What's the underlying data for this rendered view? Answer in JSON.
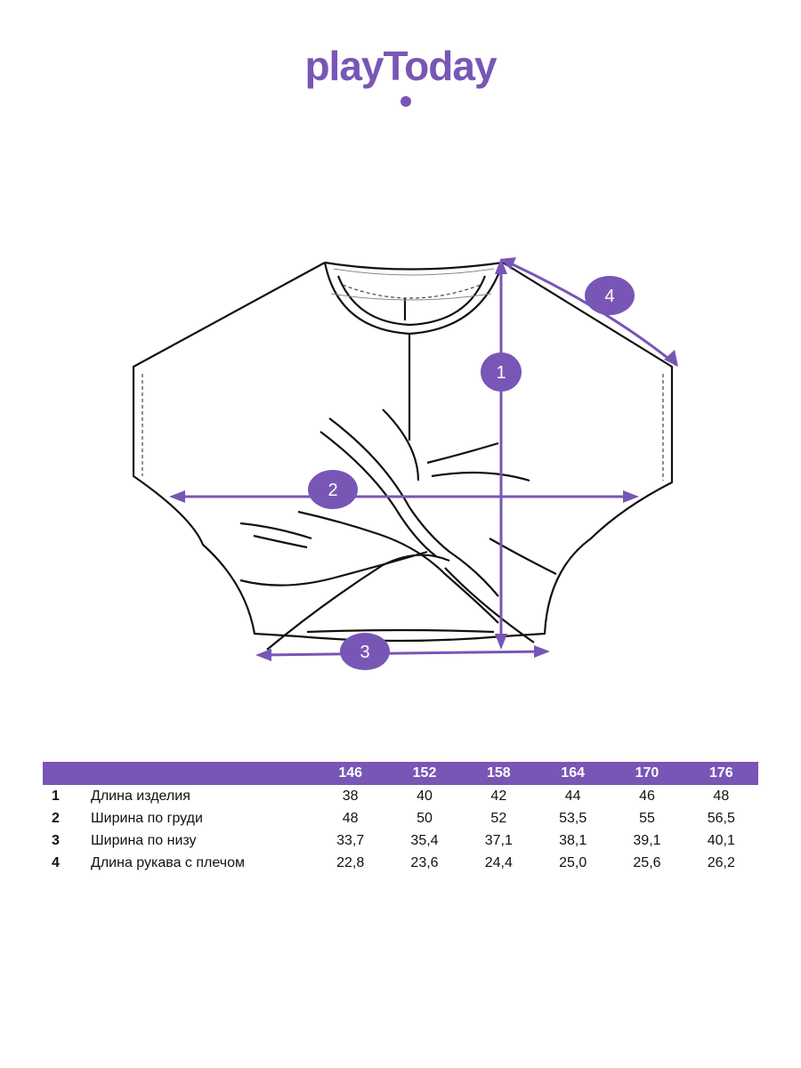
{
  "brand": {
    "name": "playToday",
    "color": "#7856b5"
  },
  "diagram": {
    "markers": [
      "1",
      "2",
      "3",
      "4"
    ],
    "accent": "#7856b5"
  },
  "table": {
    "sizes": [
      "146",
      "152",
      "158",
      "164",
      "170",
      "176"
    ],
    "rows": [
      {
        "num": "1",
        "name": "Длина изделия",
        "values": [
          "38",
          "40",
          "42",
          "44",
          "46",
          "48"
        ]
      },
      {
        "num": "2",
        "name": "Ширина по груди",
        "values": [
          "48",
          "50",
          "52",
          "53,5",
          "55",
          "56,5"
        ]
      },
      {
        "num": "3",
        "name": "Ширина по низу",
        "values": [
          "33,7",
          "35,4",
          "37,1",
          "38,1",
          "39,1",
          "40,1"
        ]
      },
      {
        "num": "4",
        "name": "Длина рукава с плечом",
        "values": [
          "22,8",
          "23,6",
          "24,4",
          "25,0",
          "25,6",
          "26,2"
        ]
      }
    ]
  }
}
